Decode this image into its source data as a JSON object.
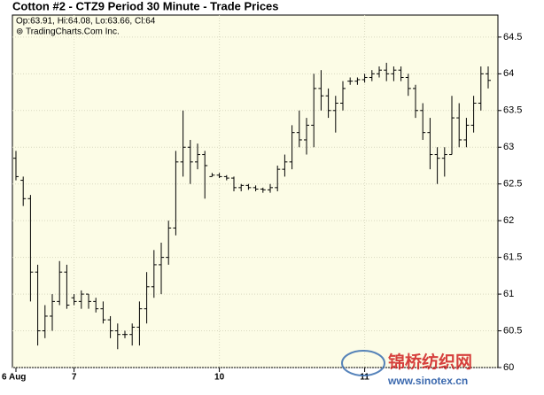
{
  "chart_data": {
    "type": "ohlc",
    "title": "Cotton #2 - CTZ9 Period 30 Minute - Trade Prices",
    "subtitle": "Op:63.91, Hi:64.08, Lo:63.66, Cl:64",
    "credit": "⊚ TradingCharts.Com Inc.",
    "watermark": {
      "name": "锦桥纺织网",
      "url": "www.sinotex.cn"
    },
    "color": "#000000",
    "categories": [
      "6 Aug",
      null,
      null,
      null,
      null,
      null,
      null,
      null,
      "7",
      null,
      null,
      null,
      null,
      null,
      null,
      null,
      null,
      null,
      null,
      null,
      null,
      null,
      null,
      null,
      null,
      null,
      null,
      null,
      "10",
      null,
      null,
      null,
      null,
      null,
      null,
      null,
      null,
      null,
      null,
      null,
      null,
      null,
      null,
      null,
      null,
      null,
      null,
      null,
      "11",
      null,
      null,
      null,
      null,
      null,
      null,
      null,
      null,
      null,
      null,
      null,
      null,
      null,
      null,
      null,
      null,
      null
    ],
    "open": [
      62.85,
      62.55,
      62.3,
      61.3,
      60.5,
      60.7,
      60.9,
      61.3,
      60.95,
      60.9,
      61.0,
      60.9,
      60.8,
      60.65,
      60.5,
      60.45,
      60.45,
      60.55,
      60.8,
      61.1,
      61.4,
      61.5,
      61.9,
      62.8,
      63.0,
      62.8,
      62.9,
      62.6,
      62.62,
      62.6,
      62.58,
      62.45,
      62.48,
      62.45,
      62.43,
      62.42,
      62.45,
      62.7,
      62.8,
      63.2,
      63.1,
      63.3,
      63.8,
      63.7,
      63.5,
      63.6,
      63.9,
      63.9,
      63.92,
      63.95,
      64.0,
      64.05,
      64.0,
      64.05,
      63.95,
      63.8,
      63.5,
      63.2,
      62.9,
      62.85,
      62.9,
      63.4,
      63.1,
      63.3,
      63.6,
      64.0
    ],
    "high": [
      62.95,
      62.6,
      62.35,
      61.4,
      60.85,
      61.0,
      61.45,
      61.4,
      61.0,
      61.05,
      61.0,
      60.95,
      60.9,
      60.7,
      60.6,
      60.5,
      60.6,
      60.9,
      61.3,
      61.6,
      61.7,
      62.0,
      62.95,
      63.5,
      63.1,
      63.05,
      62.95,
      62.65,
      62.65,
      62.62,
      62.6,
      62.5,
      62.5,
      62.48,
      62.45,
      62.5,
      62.75,
      62.9,
      63.3,
      63.5,
      63.4,
      64.0,
      64.05,
      63.8,
      63.7,
      63.9,
      63.95,
      63.95,
      64.0,
      64.05,
      64.1,
      64.15,
      64.1,
      64.1,
      64.0,
      63.85,
      63.6,
      63.4,
      63.0,
      63.0,
      63.7,
      63.6,
      63.4,
      63.7,
      64.1,
      64.1
    ],
    "low": [
      62.55,
      62.2,
      60.9,
      60.3,
      60.4,
      60.5,
      60.85,
      60.8,
      60.85,
      60.8,
      60.8,
      60.75,
      60.6,
      60.4,
      60.25,
      60.4,
      60.3,
      60.3,
      60.6,
      60.95,
      61.0,
      61.4,
      61.8,
      62.6,
      62.5,
      62.7,
      62.3,
      62.6,
      62.58,
      62.55,
      62.4,
      62.4,
      62.42,
      62.4,
      62.38,
      62.38,
      62.4,
      62.6,
      62.7,
      63.0,
      62.9,
      63.0,
      63.5,
      63.4,
      63.2,
      63.5,
      63.85,
      63.85,
      63.88,
      63.9,
      63.95,
      63.9,
      63.9,
      63.9,
      63.7,
      63.4,
      63.1,
      62.7,
      62.5,
      62.6,
      62.9,
      63.0,
      63.0,
      63.2,
      63.5,
      63.8
    ],
    "close": [
      62.6,
      62.3,
      61.3,
      60.5,
      60.7,
      60.9,
      61.3,
      60.85,
      60.9,
      61.0,
      60.9,
      60.8,
      60.65,
      60.5,
      60.45,
      60.45,
      60.55,
      60.8,
      61.1,
      61.4,
      61.5,
      61.9,
      62.8,
      63.0,
      62.8,
      62.9,
      62.75,
      62.62,
      62.6,
      62.58,
      62.45,
      62.48,
      62.45,
      62.43,
      62.42,
      62.45,
      62.7,
      62.8,
      63.2,
      63.1,
      63.3,
      63.8,
      63.7,
      63.5,
      63.6,
      63.8,
      63.9,
      63.92,
      63.95,
      64.0,
      64.05,
      64.0,
      64.05,
      63.95,
      63.8,
      63.5,
      63.2,
      62.9,
      62.85,
      62.9,
      63.4,
      63.1,
      63.3,
      63.6,
      64.0,
      63.91
    ],
    "ylim": [
      60,
      64.8
    ],
    "yticks": [
      60,
      60.5,
      61,
      61.5,
      62,
      62.5,
      63,
      63.5,
      64,
      64.5
    ],
    "grid": true
  }
}
